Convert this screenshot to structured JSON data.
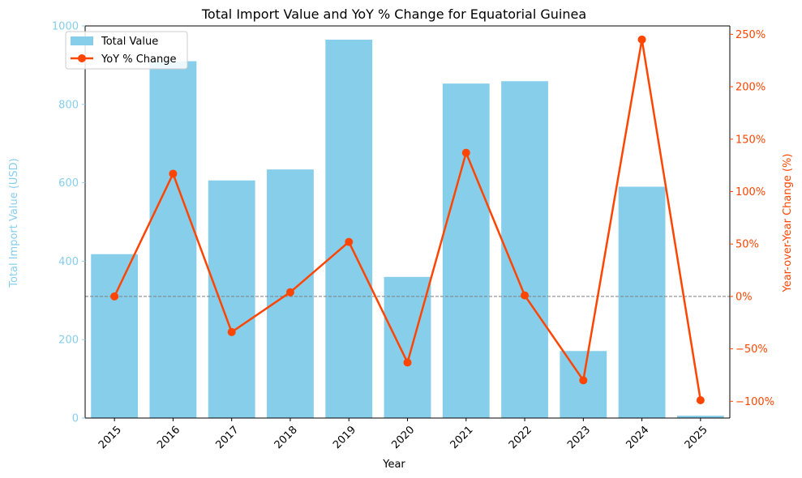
{
  "chart_data": {
    "type": "bar",
    "title": "Total Import Value and YoY % Change for Equatorial Guinea",
    "xlabel": "Year",
    "ylabel_left": "Total Import Value (USD)",
    "ylabel_right": "Year-over-Year Change (%)",
    "categories": [
      "2015",
      "2016",
      "2017",
      "2018",
      "2019",
      "2020",
      "2021",
      "2022",
      "2023",
      "2024",
      "2025"
    ],
    "series": [
      {
        "name": "Total Value",
        "type": "bar",
        "axis": "left",
        "color": "#87ceeb",
        "values": [
          418,
          910,
          606,
          634,
          965,
          360,
          853,
          859,
          171,
          590,
          6
        ]
      },
      {
        "name": "YoY % Change",
        "type": "line",
        "axis": "right",
        "color": "#ff4500",
        "values": [
          0,
          117,
          -34,
          4,
          52,
          -63,
          137,
          1,
          -80,
          245,
          -99
        ]
      }
    ],
    "ylim_left": [
      0,
      1000
    ],
    "yticks_left": [
      "0",
      "200",
      "400",
      "600",
      "800",
      "1000"
    ],
    "ylim_right": [
      -116,
      258
    ],
    "yticks_right": [
      "−100%",
      "−50%",
      "0%",
      "50%",
      "100%",
      "150%",
      "200%",
      "250%"
    ],
    "reference_line": {
      "axis": "right",
      "value": 0,
      "style": "dashed",
      "color": "#808080"
    },
    "legend_position": "top-left",
    "grid": false,
    "left_axis_color": "#87ceeb",
    "right_axis_color": "#ff4500"
  }
}
